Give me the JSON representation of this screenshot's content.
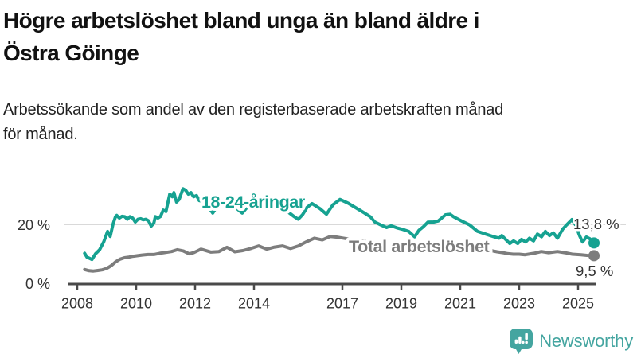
{
  "header": {
    "title_lines": [
      "Högre arbetslöshet bland unga än bland äldre i",
      "Östra Göinge"
    ],
    "subtitle_lines": [
      "Arbetssökande som andel av den registerbaserade arbetskraften månad",
      "för månad."
    ]
  },
  "colors": {
    "youth": "#16a291",
    "total": "#7d7d7d",
    "axis": "#4a4a4a",
    "grid": "#d9d9d9",
    "tick_text": "#333333",
    "value_text": "#333333",
    "logo": "#44a5a0"
  },
  "chart_data": {
    "type": "line",
    "title": "Högre arbetslöshet bland unga än bland äldre i Östra Göinge",
    "subtitle": "Arbetssökande som andel av den registerbaserade arbetskraften månad för månad.",
    "grid": "horizontal-only",
    "legend_position": "inline-labels",
    "x_range": [
      2007.7,
      2025.6
    ],
    "ylim": [
      0,
      34
    ],
    "y_gridlines": [
      20
    ],
    "y_ticks": [
      {
        "value": 20,
        "label": "20 %"
      },
      {
        "value": 0,
        "label": "0 %"
      }
    ],
    "x_ticks": [
      {
        "value": 2008,
        "label": "2008"
      },
      {
        "value": 2010,
        "label": "2010"
      },
      {
        "value": 2012,
        "label": "2012"
      },
      {
        "value": 2014,
        "label": "2014"
      },
      {
        "value": 2017,
        "label": "2017"
      },
      {
        "value": 2019,
        "label": "2019"
      },
      {
        "value": 2021,
        "label": "2021"
      },
      {
        "value": 2023,
        "label": "2023"
      },
      {
        "value": 2025,
        "label": "2025"
      }
    ],
    "series": [
      {
        "name": "Total arbetslöshet",
        "color_key": "total",
        "end_label": "9,5 %",
        "end_value": 9.5,
        "points": [
          [
            2008.25,
            4.8
          ],
          [
            2008.4,
            4.4
          ],
          [
            2008.55,
            4.3
          ],
          [
            2008.7,
            4.5
          ],
          [
            2008.85,
            4.7
          ],
          [
            2009.0,
            5.2
          ],
          [
            2009.15,
            6.1
          ],
          [
            2009.3,
            7.4
          ],
          [
            2009.45,
            8.3
          ],
          [
            2009.6,
            8.8
          ],
          [
            2009.75,
            9.0
          ],
          [
            2009.9,
            9.3
          ],
          [
            2010.05,
            9.5
          ],
          [
            2010.2,
            9.7
          ],
          [
            2010.4,
            9.9
          ],
          [
            2010.6,
            9.9
          ],
          [
            2010.8,
            10.3
          ],
          [
            2011.0,
            10.6
          ],
          [
            2011.2,
            10.9
          ],
          [
            2011.4,
            11.5
          ],
          [
            2011.6,
            11.1
          ],
          [
            2011.8,
            10.1
          ],
          [
            2011.95,
            10.5
          ],
          [
            2012.1,
            11.2
          ],
          [
            2012.2,
            11.7
          ],
          [
            2012.27,
            11.5
          ],
          [
            2012.54,
            10.7
          ],
          [
            2012.81,
            10.9
          ],
          [
            2013.08,
            12.3
          ],
          [
            2013.35,
            10.8
          ],
          [
            2013.62,
            11.2
          ],
          [
            2013.89,
            11.9
          ],
          [
            2014.16,
            12.8
          ],
          [
            2014.43,
            11.7
          ],
          [
            2014.7,
            12.4
          ],
          [
            2014.97,
            12.8
          ],
          [
            2015.24,
            11.9
          ],
          [
            2015.51,
            12.8
          ],
          [
            2015.78,
            14.2
          ],
          [
            2016.05,
            15.4
          ],
          [
            2016.32,
            14.8
          ],
          [
            2016.59,
            16.0
          ],
          [
            2016.86,
            15.7
          ],
          [
            2017.1,
            15.3
          ],
          [
            2017.4,
            14.9
          ],
          [
            2017.8,
            14.2
          ],
          [
            2018.2,
            13.4
          ],
          [
            2018.6,
            12.8
          ],
          [
            2019.0,
            12.3
          ],
          [
            2019.5,
            12.0
          ],
          [
            2020.0,
            12.6
          ],
          [
            2020.5,
            13.4
          ],
          [
            2021.0,
            12.9
          ],
          [
            2021.5,
            12.1
          ],
          [
            2022.0,
            11.3
          ],
          [
            2022.25,
            10.8
          ],
          [
            2022.45,
            10.5
          ],
          [
            2022.6,
            10.2
          ],
          [
            2022.8,
            10.0
          ],
          [
            2023.0,
            10.0
          ],
          [
            2023.2,
            9.8
          ],
          [
            2023.5,
            10.3
          ],
          [
            2023.75,
            10.9
          ],
          [
            2024.0,
            10.5
          ],
          [
            2024.3,
            10.9
          ],
          [
            2024.55,
            10.5
          ],
          [
            2024.8,
            10.0
          ],
          [
            2025.1,
            9.8
          ],
          [
            2025.3,
            9.6
          ],
          [
            2025.54,
            9.5
          ]
        ]
      },
      {
        "name": "18-24-åringar",
        "color_key": "youth",
        "end_label": "13,8 %",
        "end_value": 13.8,
        "points": [
          [
            2008.25,
            10.3
          ],
          [
            2008.33,
            9.0
          ],
          [
            2008.5,
            8.2
          ],
          [
            2008.62,
            10.1
          ],
          [
            2008.76,
            11.5
          ],
          [
            2008.9,
            14.2
          ],
          [
            2009.03,
            17.7
          ],
          [
            2009.12,
            16.0
          ],
          [
            2009.21,
            20.0
          ],
          [
            2009.3,
            22.7
          ],
          [
            2009.34,
            23.1
          ],
          [
            2009.43,
            22.2
          ],
          [
            2009.52,
            22.8
          ],
          [
            2009.61,
            22.7
          ],
          [
            2009.7,
            21.8
          ],
          [
            2009.79,
            22.7
          ],
          [
            2009.88,
            22.2
          ],
          [
            2009.97,
            20.9
          ],
          [
            2010.06,
            21.8
          ],
          [
            2010.15,
            22.0
          ],
          [
            2010.24,
            21.6
          ],
          [
            2010.33,
            21.8
          ],
          [
            2010.42,
            21.3
          ],
          [
            2010.51,
            19.5
          ],
          [
            2010.6,
            20.5
          ],
          [
            2010.65,
            22.7
          ],
          [
            2010.74,
            22.2
          ],
          [
            2010.83,
            22.8
          ],
          [
            2010.92,
            24.9
          ],
          [
            2011.01,
            24.4
          ],
          [
            2011.14,
            30.3
          ],
          [
            2011.23,
            29.4
          ],
          [
            2011.28,
            30.8
          ],
          [
            2011.37,
            27.6
          ],
          [
            2011.46,
            28.5
          ],
          [
            2011.59,
            32.1
          ],
          [
            2011.68,
            31.6
          ],
          [
            2011.77,
            30.3
          ],
          [
            2011.86,
            30.8
          ],
          [
            2011.95,
            29.4
          ],
          [
            2012.05,
            29.8
          ],
          [
            2012.14,
            28.1
          ],
          [
            2012.3,
            28.0
          ],
          [
            2012.45,
            26.0
          ],
          [
            2012.6,
            23.9
          ],
          [
            2012.75,
            26.3
          ],
          [
            2012.95,
            27.4
          ],
          [
            2013.15,
            27.8
          ],
          [
            2013.35,
            26.0
          ],
          [
            2013.6,
            23.9
          ],
          [
            2013.8,
            26.2
          ],
          [
            2014.0,
            26.8
          ],
          [
            2014.2,
            26.2
          ],
          [
            2014.45,
            25.2
          ],
          [
            2014.7,
            25.8
          ],
          [
            2014.95,
            24.8
          ],
          [
            2015.19,
            24.0
          ],
          [
            2015.35,
            22.8
          ],
          [
            2015.5,
            21.8
          ],
          [
            2015.65,
            23.4
          ],
          [
            2015.8,
            25.8
          ],
          [
            2015.97,
            27.1
          ],
          [
            2016.25,
            25.3
          ],
          [
            2016.46,
            23.5
          ],
          [
            2016.68,
            26.7
          ],
          [
            2016.92,
            28.5
          ],
          [
            2017.2,
            27.2
          ],
          [
            2017.4,
            26.0
          ],
          [
            2017.6,
            24.8
          ],
          [
            2017.75,
            23.9
          ],
          [
            2017.95,
            22.6
          ],
          [
            2018.1,
            20.9
          ],
          [
            2018.3,
            19.9
          ],
          [
            2018.5,
            19.0
          ],
          [
            2018.65,
            19.6
          ],
          [
            2018.85,
            18.9
          ],
          [
            2019.05,
            18.4
          ],
          [
            2019.25,
            17.7
          ],
          [
            2019.45,
            15.9
          ],
          [
            2019.6,
            18.1
          ],
          [
            2019.75,
            19.3
          ],
          [
            2019.9,
            20.8
          ],
          [
            2020.1,
            20.9
          ],
          [
            2020.25,
            21.2
          ],
          [
            2020.5,
            23.3
          ],
          [
            2020.65,
            23.5
          ],
          [
            2020.78,
            22.6
          ],
          [
            2021.05,
            21.2
          ],
          [
            2021.32,
            19.9
          ],
          [
            2021.59,
            17.7
          ],
          [
            2021.86,
            16.8
          ],
          [
            2022.14,
            15.9
          ],
          [
            2022.32,
            15.4
          ],
          [
            2022.41,
            16.3
          ],
          [
            2022.54,
            15.0
          ],
          [
            2022.68,
            13.6
          ],
          [
            2022.81,
            14.5
          ],
          [
            2022.95,
            13.6
          ],
          [
            2023.08,
            15.0
          ],
          [
            2023.22,
            14.1
          ],
          [
            2023.35,
            15.4
          ],
          [
            2023.49,
            14.5
          ],
          [
            2023.62,
            16.8
          ],
          [
            2023.76,
            15.9
          ],
          [
            2023.89,
            17.7
          ],
          [
            2024.03,
            16.3
          ],
          [
            2024.16,
            17.2
          ],
          [
            2024.3,
            15.4
          ],
          [
            2024.48,
            18.5
          ],
          [
            2024.61,
            19.9
          ],
          [
            2024.79,
            21.7
          ],
          [
            2024.92,
            19.8
          ],
          [
            2025.05,
            16.3
          ],
          [
            2025.15,
            14.1
          ],
          [
            2025.28,
            15.8
          ],
          [
            2025.4,
            15.2
          ],
          [
            2025.54,
            13.8
          ]
        ]
      }
    ]
  },
  "logo": {
    "text": "Newsworthy"
  }
}
